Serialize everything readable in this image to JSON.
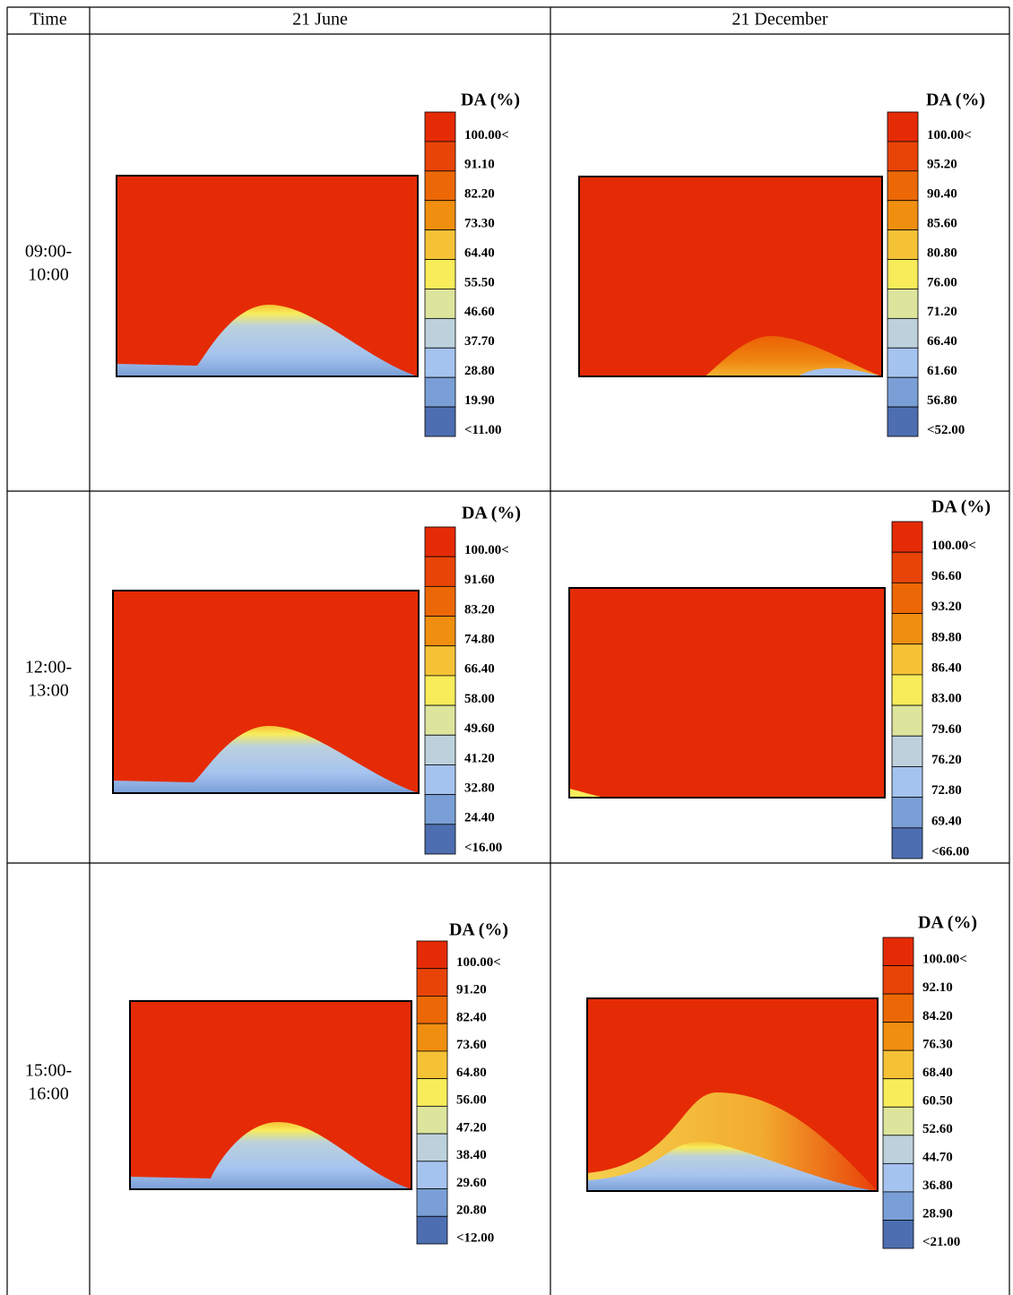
{
  "table": {
    "header": [
      "Time",
      "21 June",
      "21 December"
    ],
    "rows": [
      {
        "time": [
          "09:00-",
          "10:00"
        ],
        "june": {
          "legend_title": "DA (%)",
          "labels": [
            "100.00<",
            "91.10",
            "82.20",
            "73.30",
            "64.40",
            "55.50",
            "46.60",
            "37.70",
            "28.80",
            "19.90",
            "<11.00"
          ]
        },
        "december": {
          "legend_title": "DA (%)",
          "labels": [
            "100.00<",
            "95.20",
            "90.40",
            "85.60",
            "80.80",
            "76.00",
            "71.20",
            "66.40",
            "61.60",
            "56.80",
            "<52.00"
          ]
        }
      },
      {
        "time": [
          "12:00-",
          "13:00"
        ],
        "june": {
          "legend_title": "DA (%)",
          "labels": [
            "100.00<",
            "91.60",
            "83.20",
            "74.80",
            "66.40",
            "58.00",
            "49.60",
            "41.20",
            "32.80",
            "24.40",
            "<16.00"
          ]
        },
        "december": {
          "legend_title": "DA (%)",
          "labels": [
            "100.00<",
            "96.60",
            "93.20",
            "89.80",
            "86.40",
            "83.00",
            "79.60",
            "76.20",
            "72.80",
            "69.40",
            "<66.00"
          ]
        }
      },
      {
        "time": [
          "15:00-",
          "16:00"
        ],
        "june": {
          "legend_title": "DA (%)",
          "labels": [
            "100.00<",
            "91.20",
            "82.40",
            "73.60",
            "64.80",
            "56.00",
            "47.20",
            "38.40",
            "29.60",
            "20.80",
            "<12.00"
          ]
        },
        "december": {
          "legend_title": "DA (%)",
          "labels": [
            "100.00<",
            "92.10",
            "84.20",
            "76.30",
            "68.40",
            "60.50",
            "52.60",
            "44.70",
            "36.80",
            "28.90",
            "<21.00"
          ]
        }
      }
    ]
  }
}
